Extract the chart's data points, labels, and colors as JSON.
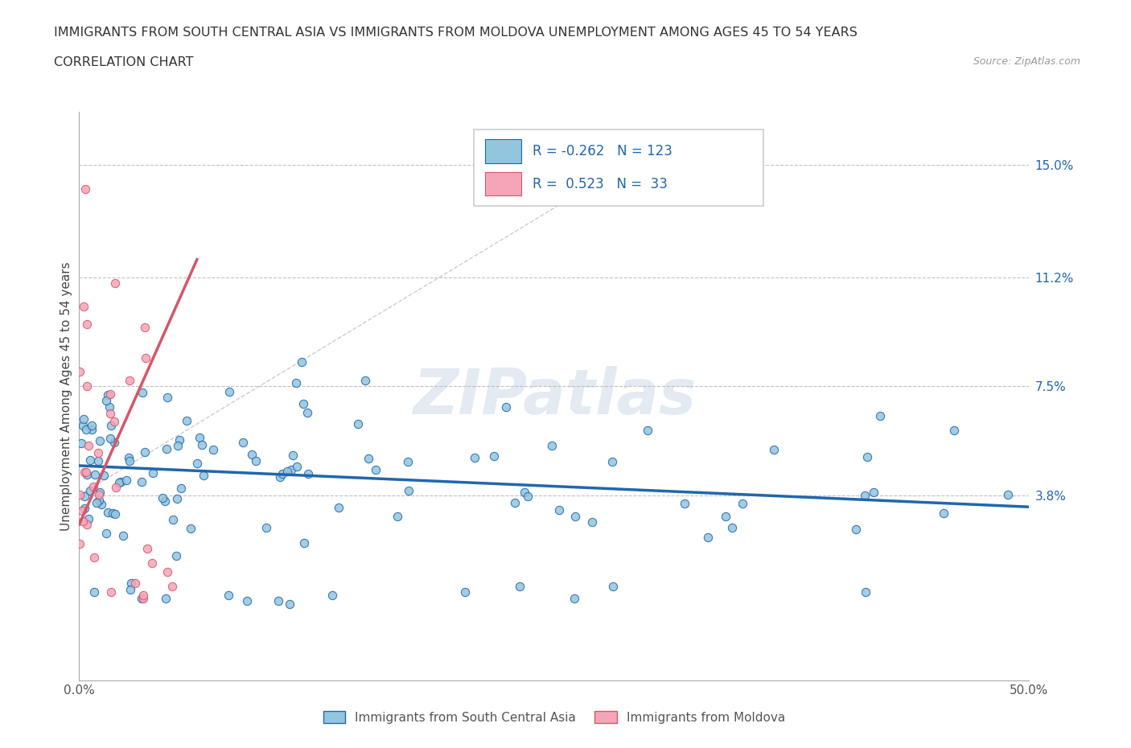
{
  "title_line1": "IMMIGRANTS FROM SOUTH CENTRAL ASIA VS IMMIGRANTS FROM MOLDOVA UNEMPLOYMENT AMONG AGES 45 TO 54 YEARS",
  "title_line2": "CORRELATION CHART",
  "source_text": "Source: ZipAtlas.com",
  "ylabel": "Unemployment Among Ages 45 to 54 years",
  "xlim": [
    0.0,
    0.5
  ],
  "ylim": [
    -0.025,
    0.168
  ],
  "ytick_positions": [
    0.038,
    0.075,
    0.112,
    0.15
  ],
  "ytick_labels": [
    "3.8%",
    "7.5%",
    "11.2%",
    "15.0%"
  ],
  "R_blue": -0.262,
  "N_blue": 123,
  "R_pink": 0.523,
  "N_pink": 33,
  "color_blue": "#92c5de",
  "color_pink": "#f4a6b8",
  "color_blue_dark": "#2166ac",
  "color_pink_dark": "#d6556a",
  "legend_label_blue": "Immigrants from South Central Asia",
  "legend_label_pink": "Immigrants from Moldova"
}
